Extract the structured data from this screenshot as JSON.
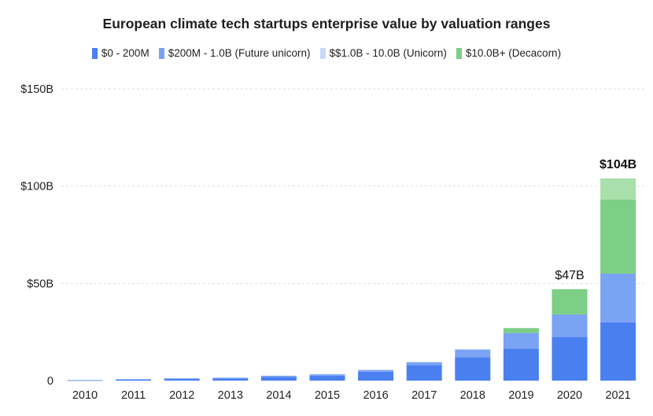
{
  "chart_data": {
    "type": "bar",
    "stacked": true,
    "title": "European climate tech startups enterprise value by valuation ranges",
    "xlabel": "",
    "ylabel": "",
    "ylim": [
      0,
      150
    ],
    "yticks": [
      {
        "value": 0,
        "label": "0"
      },
      {
        "value": 50,
        "label": "$50B"
      },
      {
        "value": 100,
        "label": "$100B"
      },
      {
        "value": 150,
        "label": "$150B"
      }
    ],
    "grid": true,
    "legend_position": "top",
    "categories": [
      "2010",
      "2011",
      "2012",
      "2013",
      "2014",
      "2015",
      "2016",
      "2017",
      "2018",
      "2019",
      "2020",
      "2021"
    ],
    "series": [
      {
        "name": "$0 - 200M",
        "color": "#4a7ff0",
        "values": [
          0.2,
          0.5,
          0.8,
          1.0,
          1.8,
          2.5,
          4.5,
          8.0,
          12.0,
          16.5,
          22.5,
          30.0
        ]
      },
      {
        "name": "$200M - 1.0B (Future unicorn)",
        "color": "#7aa3f4",
        "values": [
          0.1,
          0.3,
          0.4,
          0.5,
          0.7,
          0.8,
          1.0,
          1.5,
          4.0,
          8.0,
          11.5,
          25.0
        ]
      },
      {
        "name": "$$1.0B - 10.0B (Unicorn)",
        "color": "#c9d9fb",
        "values": [
          0,
          0,
          0,
          0,
          0,
          0,
          0,
          0,
          0,
          0,
          0,
          0
        ]
      },
      {
        "name": "$10.0B+ (Decacorn)",
        "color": "#7dce86",
        "values": [
          0,
          0,
          0,
          0,
          0,
          0,
          0,
          0,
          0,
          2.5,
          13.0,
          38.0
        ]
      },
      {
        "name": "",
        "color": "#a9dfab",
        "show_in_legend": false,
        "values": [
          0,
          0,
          0,
          0,
          0,
          0,
          0,
          0,
          0,
          0,
          0,
          11.0
        ]
      }
    ],
    "annotations": [
      {
        "category": "2020",
        "value": 47,
        "text": "$47B",
        "bold": false
      },
      {
        "category": "2021",
        "value": 104,
        "text": "$104B",
        "bold": true
      }
    ]
  }
}
